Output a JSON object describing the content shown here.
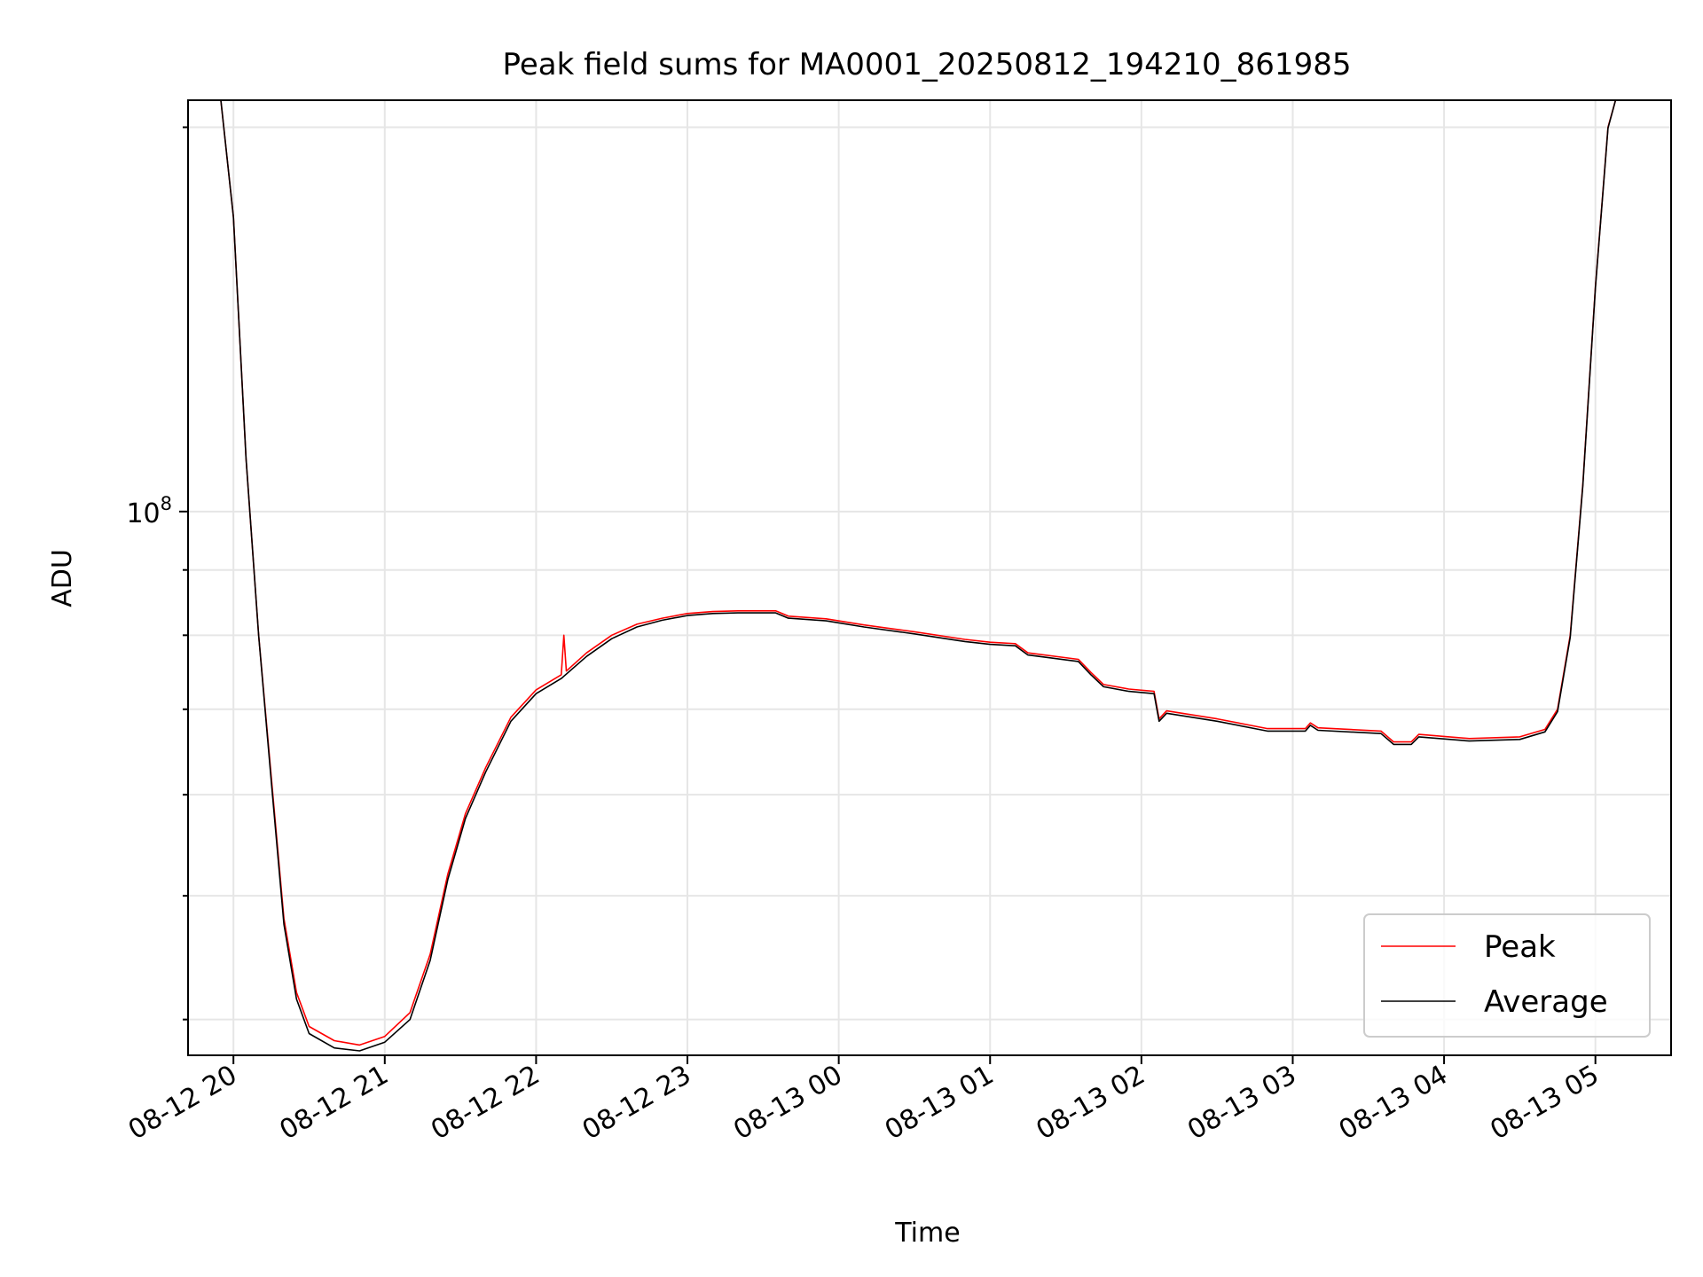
{
  "chart_data": {
    "type": "line",
    "title": "Peak field sums for MA0001_20250812_194210_861985",
    "xlabel": "Time",
    "ylabel": "ADU",
    "x_format": "MM-DD HH (2025)",
    "xlim": [
      "2025-08-12T19:42",
      "2025-08-13T05:30"
    ],
    "ylim": [
      37500000,
      210000000
    ],
    "y_scale": "log",
    "y_tick_labels": [
      "10^8"
    ],
    "x_tick_labels": [
      "08-12 20",
      "08-12 21",
      "08-12 22",
      "08-12 23",
      "08-13 00",
      "08-13 01",
      "08-13 02",
      "08-13 03",
      "08-13 04",
      "08-13 05"
    ],
    "grid": true,
    "legend": {
      "position": "lower-right",
      "entries": [
        "Peak",
        "Average"
      ]
    },
    "colors": {
      "Peak": "#ff0000",
      "Average": "#000000",
      "grid": "#e6e6e6"
    },
    "series": [
      {
        "name": "Peak",
        "points": [
          [
            "2025-08-12T19:42",
            210000000
          ],
          [
            "2025-08-12T19:55",
            210000000
          ],
          [
            "2025-08-12T20:00",
            170000000
          ],
          [
            "2025-08-12T20:05",
            110000000
          ],
          [
            "2025-08-12T20:10",
            80000000
          ],
          [
            "2025-08-12T20:15",
            62000000
          ],
          [
            "2025-08-12T20:20",
            48000000
          ],
          [
            "2025-08-12T20:25",
            42000000
          ],
          [
            "2025-08-12T20:30",
            39500000
          ],
          [
            "2025-08-12T20:40",
            38500000
          ],
          [
            "2025-08-12T20:50",
            38200000
          ],
          [
            "2025-08-12T21:00",
            38800000
          ],
          [
            "2025-08-12T21:10",
            40500000
          ],
          [
            "2025-08-12T21:18",
            45000000
          ],
          [
            "2025-08-12T21:25",
            52000000
          ],
          [
            "2025-08-12T21:32",
            58000000
          ],
          [
            "2025-08-12T21:40",
            63000000
          ],
          [
            "2025-08-12T21:50",
            69000000
          ],
          [
            "2025-08-12T22:00",
            72500000
          ],
          [
            "2025-08-12T22:10",
            74500000
          ],
          [
            "2025-08-12T22:11",
            80000000
          ],
          [
            "2025-08-12T22:12",
            75000000
          ],
          [
            "2025-08-12T22:20",
            77500000
          ],
          [
            "2025-08-12T22:30",
            80000000
          ],
          [
            "2025-08-12T22:40",
            81600000
          ],
          [
            "2025-08-12T22:50",
            82500000
          ],
          [
            "2025-08-12T23:00",
            83200000
          ],
          [
            "2025-08-12T23:10",
            83500000
          ],
          [
            "2025-08-12T23:20",
            83600000
          ],
          [
            "2025-08-12T23:35",
            83600000
          ],
          [
            "2025-08-12T23:40",
            82800000
          ],
          [
            "2025-08-12T23:55",
            82400000
          ],
          [
            "2025-08-13T00:10",
            81500000
          ],
          [
            "2025-08-13T00:30",
            80500000
          ],
          [
            "2025-08-13T00:50",
            79400000
          ],
          [
            "2025-08-13T01:00",
            79000000
          ],
          [
            "2025-08-13T01:10",
            78800000
          ],
          [
            "2025-08-13T01:15",
            77500000
          ],
          [
            "2025-08-13T01:35",
            76600000
          ],
          [
            "2025-08-13T01:40",
            74800000
          ],
          [
            "2025-08-13T01:45",
            73200000
          ],
          [
            "2025-08-13T01:55",
            72600000
          ],
          [
            "2025-08-13T02:05",
            72300000
          ],
          [
            "2025-08-13T02:07",
            68800000
          ],
          [
            "2025-08-13T02:10",
            69800000
          ],
          [
            "2025-08-13T02:30",
            68800000
          ],
          [
            "2025-08-13T02:50",
            67600000
          ],
          [
            "2025-08-13T03:05",
            67600000
          ],
          [
            "2025-08-13T03:07",
            68300000
          ],
          [
            "2025-08-13T03:10",
            67700000
          ],
          [
            "2025-08-13T03:35",
            67300000
          ],
          [
            "2025-08-13T03:40",
            66000000
          ],
          [
            "2025-08-13T03:47",
            66000000
          ],
          [
            "2025-08-13T03:50",
            66900000
          ],
          [
            "2025-08-13T04:10",
            66400000
          ],
          [
            "2025-08-13T04:30",
            66600000
          ],
          [
            "2025-08-13T04:40",
            67500000
          ],
          [
            "2025-08-13T04:45",
            70000000
          ],
          [
            "2025-08-13T04:50",
            80000000
          ],
          [
            "2025-08-13T04:55",
            105000000
          ],
          [
            "2025-08-13T05:00",
            150000000
          ],
          [
            "2025-08-13T05:05",
            200000000
          ],
          [
            "2025-08-13T05:08",
            210000000
          ],
          [
            "2025-08-13T05:30",
            210000000
          ]
        ]
      },
      {
        "name": "Average",
        "points": [
          [
            "2025-08-12T19:42",
            210000000
          ],
          [
            "2025-08-12T19:55",
            210000000
          ],
          [
            "2025-08-12T20:00",
            170000000
          ],
          [
            "2025-08-12T20:05",
            110000000
          ],
          [
            "2025-08-12T20:10",
            80000000
          ],
          [
            "2025-08-12T20:15",
            61500000
          ],
          [
            "2025-08-12T20:20",
            47500000
          ],
          [
            "2025-08-12T20:25",
            41500000
          ],
          [
            "2025-08-12T20:30",
            39000000
          ],
          [
            "2025-08-12T20:40",
            38000000
          ],
          [
            "2025-08-12T20:50",
            37800000
          ],
          [
            "2025-08-12T21:00",
            38400000
          ],
          [
            "2025-08-12T21:10",
            40000000
          ],
          [
            "2025-08-12T21:18",
            44500000
          ],
          [
            "2025-08-12T21:25",
            51500000
          ],
          [
            "2025-08-12T21:32",
            57500000
          ],
          [
            "2025-08-12T21:40",
            62500000
          ],
          [
            "2025-08-12T21:50",
            68500000
          ],
          [
            "2025-08-12T22:00",
            72000000
          ],
          [
            "2025-08-12T22:10",
            74000000
          ],
          [
            "2025-08-12T22:20",
            77000000
          ],
          [
            "2025-08-12T22:30",
            79500000
          ],
          [
            "2025-08-12T22:40",
            81200000
          ],
          [
            "2025-08-12T22:50",
            82200000
          ],
          [
            "2025-08-12T23:00",
            82900000
          ],
          [
            "2025-08-12T23:10",
            83200000
          ],
          [
            "2025-08-12T23:20",
            83300000
          ],
          [
            "2025-08-12T23:35",
            83300000
          ],
          [
            "2025-08-12T23:40",
            82500000
          ],
          [
            "2025-08-12T23:55",
            82100000
          ],
          [
            "2025-08-13T00:10",
            81200000
          ],
          [
            "2025-08-13T00:30",
            80200000
          ],
          [
            "2025-08-13T00:50",
            79100000
          ],
          [
            "2025-08-13T01:00",
            78700000
          ],
          [
            "2025-08-13T01:10",
            78500000
          ],
          [
            "2025-08-13T01:15",
            77200000
          ],
          [
            "2025-08-13T01:35",
            76300000
          ],
          [
            "2025-08-13T01:40",
            74500000
          ],
          [
            "2025-08-13T01:45",
            72900000
          ],
          [
            "2025-08-13T01:55",
            72300000
          ],
          [
            "2025-08-13T02:05",
            72000000
          ],
          [
            "2025-08-13T02:07",
            68500000
          ],
          [
            "2025-08-13T02:10",
            69500000
          ],
          [
            "2025-08-13T02:30",
            68500000
          ],
          [
            "2025-08-13T02:50",
            67300000
          ],
          [
            "2025-08-13T03:05",
            67300000
          ],
          [
            "2025-08-13T03:07",
            68000000
          ],
          [
            "2025-08-13T03:10",
            67400000
          ],
          [
            "2025-08-13T03:35",
            67000000
          ],
          [
            "2025-08-13T03:40",
            65700000
          ],
          [
            "2025-08-13T03:47",
            65700000
          ],
          [
            "2025-08-13T03:50",
            66600000
          ],
          [
            "2025-08-13T04:10",
            66100000
          ],
          [
            "2025-08-13T04:30",
            66300000
          ],
          [
            "2025-08-13T04:40",
            67200000
          ],
          [
            "2025-08-13T04:45",
            69700000
          ],
          [
            "2025-08-13T04:50",
            79700000
          ],
          [
            "2025-08-13T04:55",
            104700000
          ],
          [
            "2025-08-13T05:00",
            149700000
          ],
          [
            "2025-08-13T05:05",
            199700000
          ],
          [
            "2025-08-13T05:08",
            210000000
          ],
          [
            "2025-08-13T05:30",
            210000000
          ]
        ]
      }
    ]
  }
}
